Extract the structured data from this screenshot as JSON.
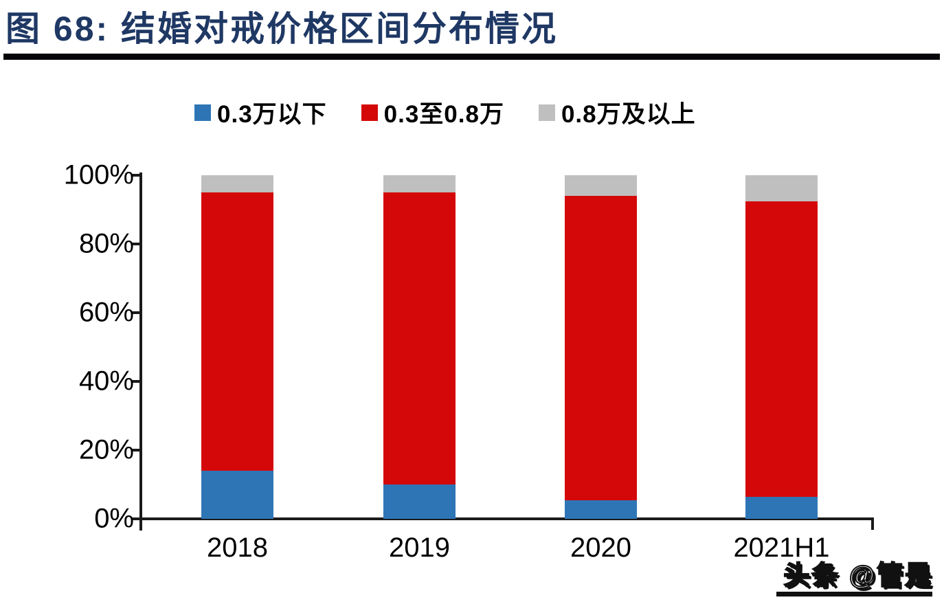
{
  "title": "图 68:  结婚对戒价格区间分布情况",
  "watermark": "头条 @管是",
  "colors": {
    "title": "#1F3864",
    "axis": "#1a1a1a",
    "blue": "#2E75B6",
    "red": "#D40808",
    "gray": "#BFBFBF"
  },
  "chart_data": {
    "type": "bar",
    "subtype": "stacked-100-percent",
    "title": "图 68:  结婚对戒价格区间分布情况",
    "categories": [
      "2018",
      "2019",
      "2020",
      "2021H1"
    ],
    "series": [
      {
        "name": "0.3万以下",
        "color": "#2E75B6",
        "values": [
          14,
          10,
          5.5,
          6.5
        ]
      },
      {
        "name": "0.3至0.8万",
        "color": "#D40808",
        "values": [
          81,
          85,
          88.5,
          86
        ]
      },
      {
        "name": "0.8万及以上",
        "color": "#BFBFBF",
        "values": [
          5,
          5,
          6,
          7.5
        ]
      }
    ],
    "xlabel": "",
    "ylabel": "",
    "ylim": [
      0,
      100
    ],
    "y_tick_labels": [
      "0%",
      "20%",
      "40%",
      "60%",
      "80%",
      "100%"
    ],
    "grid": false,
    "legend_position": "top"
  }
}
